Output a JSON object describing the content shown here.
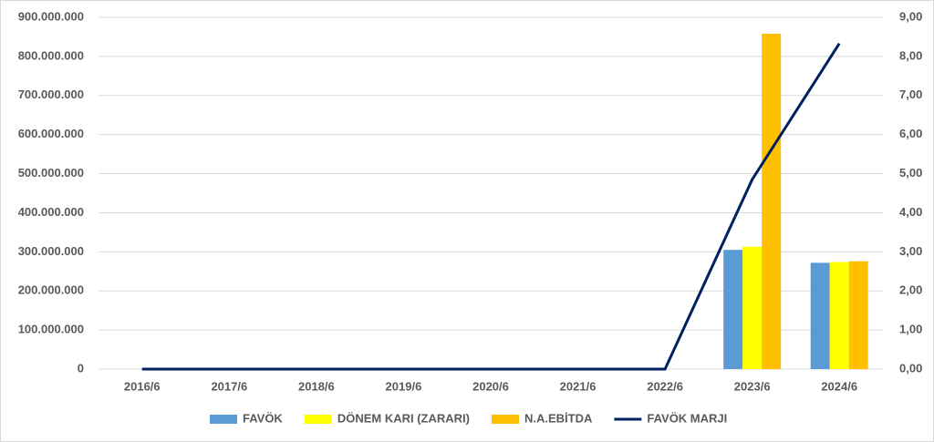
{
  "chart_data": {
    "type": "bar-line",
    "categories": [
      "2016/6",
      "2017/6",
      "2018/6",
      "2019/6",
      "2020/6",
      "2021/6",
      "2022/6",
      "2023/6",
      "2024/6"
    ],
    "series": [
      {
        "name": "FAVÖK",
        "type": "bar",
        "color": "#5b9bd5",
        "values": [
          0,
          0,
          0,
          0,
          0,
          0,
          0,
          305000000,
          272000000
        ]
      },
      {
        "name": "DÖNEM KARI (ZARARI)",
        "type": "bar",
        "color": "#ffff00",
        "values": [
          0,
          0,
          0,
          0,
          0,
          0,
          0,
          313000000,
          274000000
        ]
      },
      {
        "name": "N.A.EBİTDA",
        "type": "bar",
        "color": "#ffc000",
        "values": [
          0,
          0,
          0,
          0,
          0,
          0,
          0,
          858000000,
          276000000
        ]
      },
      {
        "name": "FAVÖK MARJI",
        "type": "line",
        "axis": "y2",
        "color": "#002060",
        "values": [
          0,
          0,
          0,
          0,
          0,
          0,
          0,
          4.85,
          8.33
        ]
      }
    ],
    "ylim": [
      0,
      900000000
    ],
    "yticks": [
      0,
      {
        "value": 100000000,
        "label": "100.000.000"
      },
      {
        "value": 200000000,
        "label": "200.000.000"
      },
      {
        "value": 300000000,
        "label": "300.000.000"
      },
      {
        "value": 400000000,
        "label": "400.000.000"
      },
      {
        "value": 500000000,
        "label": "500.000.000"
      },
      {
        "value": 600000000,
        "label": "600.000.000"
      },
      {
        "value": 700000000,
        "label": "700.000.000"
      },
      {
        "value": 800000000,
        "label": "800.000.000"
      },
      {
        "value": 900000000,
        "label": "900.000.000"
      }
    ],
    "y2lim": [
      0,
      9
    ],
    "y2ticks": [
      {
        "value": 0,
        "label": "0,00"
      },
      {
        "value": 1,
        "label": "1,00"
      },
      {
        "value": 2,
        "label": "2,00"
      },
      {
        "value": 3,
        "label": "3,00"
      },
      {
        "value": 4,
        "label": "4,00"
      },
      {
        "value": 5,
        "label": "5,00"
      },
      {
        "value": 6,
        "label": "6,00"
      },
      {
        "value": 7,
        "label": "7,00"
      },
      {
        "value": 8,
        "label": "8,00"
      },
      {
        "value": 9,
        "label": "9,00"
      }
    ],
    "grid": true,
    "legend": "bottom"
  }
}
